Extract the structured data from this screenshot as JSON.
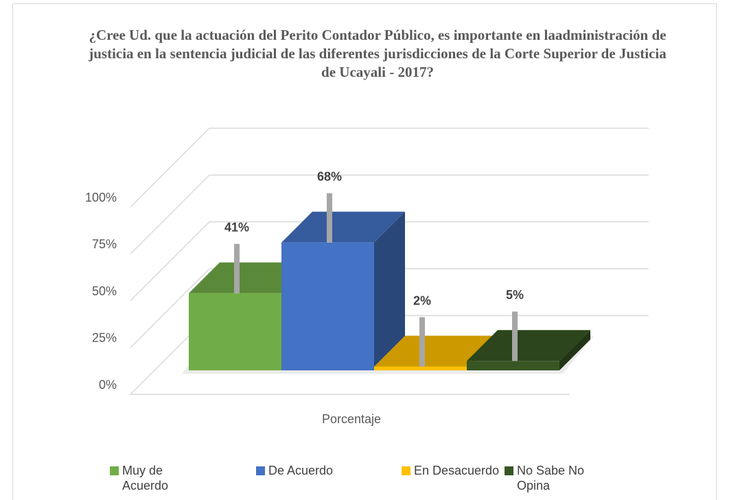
{
  "chart_data": {
    "type": "bar3d",
    "title": "¿Cree Ud. que la actuación del Perito Contador Público, es importante en laadministración de justicia en la sentencia judicial de las diferentes jurisdicciones de la  Corte Superior de Justicia de Ucayali - 2017?",
    "categories": [
      "Porcentaje"
    ],
    "series": [
      {
        "name": "Muy de Acuerdo",
        "color": "#70ad47",
        "values": [
          41
        ],
        "value_labels": [
          "41%"
        ]
      },
      {
        "name": "De Acuerdo",
        "color": "#4472c4",
        "values": [
          68
        ],
        "value_labels": [
          "68%"
        ]
      },
      {
        "name": "En Desacuerdo",
        "color": "#ffc000",
        "values": [
          2
        ],
        "value_labels": [
          "2%"
        ]
      },
      {
        "name": "No Sabe No Opina",
        "color": "#375623",
        "values": [
          5
        ],
        "value_labels": [
          "5%"
        ]
      }
    ],
    "ylim": [
      0,
      100
    ],
    "yticks": [
      {
        "value": 0,
        "label": "0%"
      },
      {
        "value": 25,
        "label": "25%"
      },
      {
        "value": 50,
        "label": "50%"
      },
      {
        "value": 75,
        "label": "75%"
      },
      {
        "value": 100,
        "label": "100%"
      }
    ],
    "grid": true,
    "legend": "bottom"
  }
}
